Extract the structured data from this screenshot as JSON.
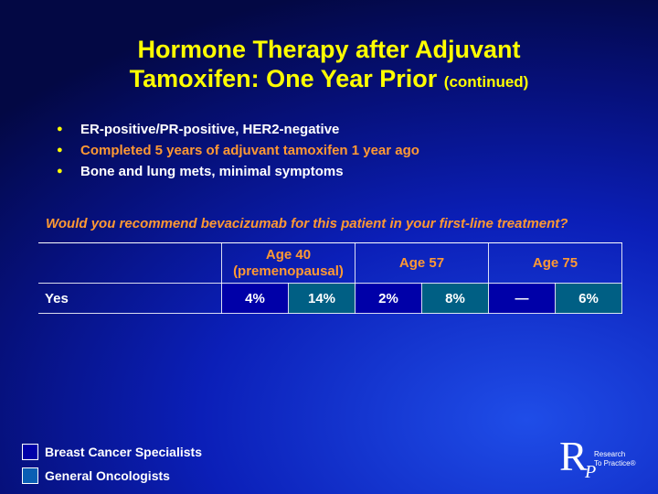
{
  "header": {
    "title_line1": "Hormone Therapy after Adjuvant",
    "title_line2": "Tamoxifen: One Year Prior",
    "title_suffix": "(continued)"
  },
  "bullets": [
    "ER-positive/PR-positive, HER2-negative",
    "Completed 5 years of adjuvant tamoxifen 1 year ago",
    "Bone and lung mets, minimal symptoms"
  ],
  "question": "Would you recommend bevacizumab for this patient in your first-line treatment?",
  "table": {
    "groups": [
      [
        "Age 40",
        "(premenopausal)"
      ],
      [
        "Age 57"
      ],
      [
        "Age 75"
      ]
    ],
    "rows": [
      [
        "Yes",
        "4%",
        "14%",
        "2%",
        "8%",
        "—",
        "6%"
      ]
    ]
  },
  "legend": [
    "Breast Cancer Specialists",
    "General Oncologists"
  ],
  "logo": {
    "letter1": "R",
    "letter2": "P",
    "line1": "Research",
    "line2": "To Practice®"
  }
}
